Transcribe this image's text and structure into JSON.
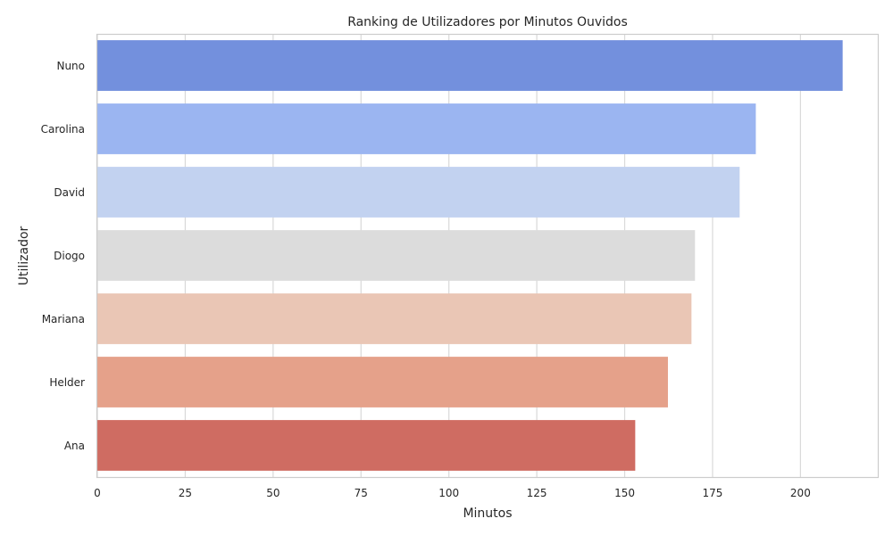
{
  "chart_data": {
    "type": "bar",
    "orientation": "horizontal",
    "title": "Ranking de Utilizadores por Minutos Ouvidos",
    "xlabel": "Minutos",
    "ylabel": "Utilizador",
    "categories": [
      "Nuno",
      "Carolina",
      "David",
      "Diogo",
      "Mariana",
      "Helder",
      "Ana"
    ],
    "values": [
      212,
      187.3,
      182.7,
      170,
      169,
      162.3,
      153
    ],
    "colors": [
      "#7390dd",
      "#9bb5f1",
      "#c2d2f0",
      "#dcdcdc",
      "#eac6b5",
      "#e5a18a",
      "#cf6c62"
    ],
    "xlim": [
      0,
      222
    ],
    "xticks": [
      0,
      25,
      50,
      75,
      100,
      125,
      150,
      175,
      200
    ],
    "grid": true
  }
}
